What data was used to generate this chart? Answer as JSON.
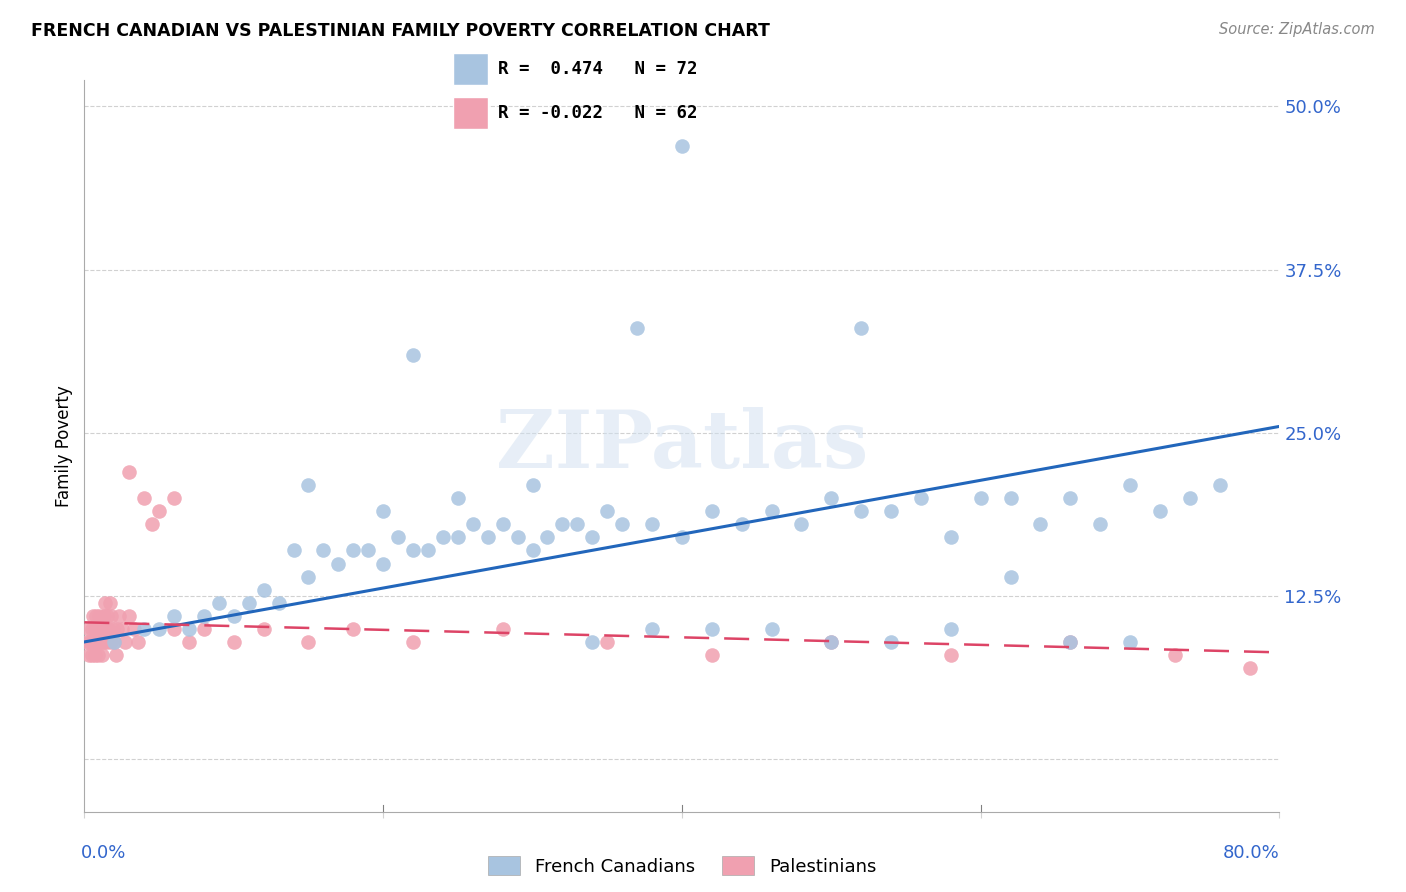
{
  "title": "FRENCH CANADIAN VS PALESTINIAN FAMILY POVERTY CORRELATION CHART",
  "source": "Source: ZipAtlas.com",
  "ylabel": "Family Poverty",
  "xlim": [
    0.0,
    0.8
  ],
  "ylim": [
    -0.04,
    0.52
  ],
  "watermark": "ZIPatlas",
  "legend_entry1": "R =  0.474   N = 72",
  "legend_entry2": "R = -0.022   N = 62",
  "legend_label1": "French Canadians",
  "legend_label2": "Palestinians",
  "blue_color": "#a8c4e0",
  "pink_color": "#f0a0b0",
  "blue_line_color": "#2266bb",
  "pink_line_color": "#dd4466",
  "background_color": "#ffffff",
  "blue_line_y0": 0.09,
  "blue_line_y1": 0.255,
  "pink_line_y0": 0.105,
  "pink_line_y1": 0.082,
  "blue_x": [
    0.02,
    0.04,
    0.05,
    0.06,
    0.07,
    0.08,
    0.09,
    0.1,
    0.11,
    0.12,
    0.13,
    0.14,
    0.15,
    0.16,
    0.17,
    0.18,
    0.19,
    0.2,
    0.21,
    0.22,
    0.23,
    0.24,
    0.25,
    0.26,
    0.27,
    0.28,
    0.29,
    0.3,
    0.31,
    0.32,
    0.33,
    0.34,
    0.35,
    0.36,
    0.38,
    0.4,
    0.42,
    0.44,
    0.46,
    0.48,
    0.5,
    0.52,
    0.54,
    0.56,
    0.58,
    0.6,
    0.62,
    0.64,
    0.66,
    0.68,
    0.7,
    0.72,
    0.74,
    0.76,
    0.15,
    0.2,
    0.25,
    0.3,
    0.34,
    0.38,
    0.42,
    0.46,
    0.5,
    0.54,
    0.58,
    0.62,
    0.66,
    0.7,
    0.37,
    0.22,
    0.52,
    0.4
  ],
  "blue_y": [
    0.09,
    0.1,
    0.1,
    0.11,
    0.1,
    0.11,
    0.12,
    0.11,
    0.12,
    0.13,
    0.12,
    0.16,
    0.14,
    0.16,
    0.15,
    0.16,
    0.16,
    0.15,
    0.17,
    0.16,
    0.16,
    0.17,
    0.17,
    0.18,
    0.17,
    0.18,
    0.17,
    0.16,
    0.17,
    0.18,
    0.18,
    0.17,
    0.19,
    0.18,
    0.18,
    0.17,
    0.19,
    0.18,
    0.19,
    0.18,
    0.2,
    0.19,
    0.19,
    0.2,
    0.17,
    0.2,
    0.2,
    0.18,
    0.2,
    0.18,
    0.21,
    0.19,
    0.2,
    0.21,
    0.21,
    0.19,
    0.2,
    0.21,
    0.09,
    0.1,
    0.1,
    0.1,
    0.09,
    0.09,
    0.1,
    0.14,
    0.09,
    0.09,
    0.33,
    0.31,
    0.33,
    0.47
  ],
  "pink_x": [
    0.002,
    0.003,
    0.003,
    0.004,
    0.005,
    0.005,
    0.006,
    0.006,
    0.007,
    0.007,
    0.008,
    0.008,
    0.009,
    0.009,
    0.01,
    0.01,
    0.01,
    0.011,
    0.011,
    0.012,
    0.012,
    0.013,
    0.013,
    0.014,
    0.014,
    0.015,
    0.015,
    0.016,
    0.017,
    0.018,
    0.018,
    0.019,
    0.02,
    0.021,
    0.022,
    0.023,
    0.025,
    0.027,
    0.03,
    0.033,
    0.036,
    0.04,
    0.045,
    0.05,
    0.06,
    0.07,
    0.08,
    0.1,
    0.12,
    0.15,
    0.18,
    0.22,
    0.28,
    0.35,
    0.42,
    0.5,
    0.58,
    0.66,
    0.73,
    0.78,
    0.03,
    0.06
  ],
  "pink_y": [
    0.09,
    0.08,
    0.1,
    0.09,
    0.08,
    0.1,
    0.09,
    0.11,
    0.08,
    0.1,
    0.09,
    0.11,
    0.1,
    0.08,
    0.09,
    0.1,
    0.11,
    0.1,
    0.09,
    0.08,
    0.1,
    0.09,
    0.11,
    0.1,
    0.12,
    0.09,
    0.11,
    0.1,
    0.12,
    0.09,
    0.11,
    0.1,
    0.09,
    0.08,
    0.1,
    0.11,
    0.1,
    0.09,
    0.11,
    0.1,
    0.09,
    0.2,
    0.18,
    0.19,
    0.1,
    0.09,
    0.1,
    0.09,
    0.1,
    0.09,
    0.1,
    0.09,
    0.1,
    0.09,
    0.08,
    0.09,
    0.08,
    0.09,
    0.08,
    0.07,
    0.22,
    0.2
  ]
}
